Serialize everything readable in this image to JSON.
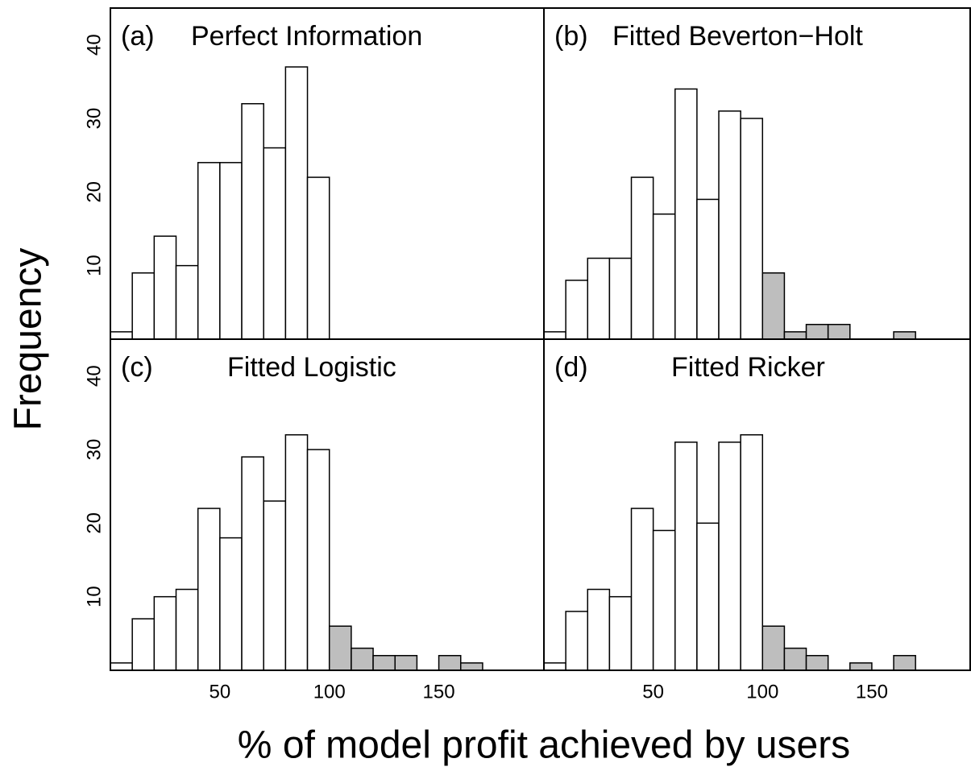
{
  "chart_data": [
    {
      "type": "histogram",
      "label": "(a)",
      "title": "Perfect Information",
      "bins": [
        0,
        10,
        20,
        30,
        40,
        50,
        60,
        70,
        80,
        90,
        100
      ],
      "counts": [
        1,
        9,
        14,
        10,
        24,
        24,
        32,
        26,
        37,
        22
      ],
      "colors": [
        "#ffffff",
        "#ffffff",
        "#ffffff",
        "#ffffff",
        "#ffffff",
        "#ffffff",
        "#ffffff",
        "#ffffff",
        "#ffffff",
        "#ffffff"
      ],
      "xlim": [
        0,
        198
      ],
      "ylim": [
        0,
        45
      ],
      "yticks": [
        10,
        20,
        30,
        40
      ]
    },
    {
      "type": "histogram",
      "label": "(b)",
      "title": "Fitted Beverton−Holt",
      "bins": [
        0,
        10,
        20,
        30,
        40,
        50,
        60,
        70,
        80,
        90,
        100,
        110,
        120,
        130,
        140,
        150,
        160,
        170
      ],
      "counts": [
        1,
        8,
        11,
        11,
        22,
        17,
        34,
        19,
        31,
        30,
        9,
        1,
        2,
        2,
        0,
        0,
        1
      ],
      "colors": [
        "#ffffff",
        "#ffffff",
        "#ffffff",
        "#ffffff",
        "#ffffff",
        "#ffffff",
        "#ffffff",
        "#ffffff",
        "#ffffff",
        "#ffffff",
        "#bebebe",
        "#bebebe",
        "#bebebe",
        "#bebebe",
        "#bebebe",
        "#bebebe",
        "#bebebe"
      ],
      "xlim": [
        0,
        195
      ],
      "ylim": [
        0,
        45
      ]
    },
    {
      "type": "histogram",
      "label": "(c)",
      "title": "Fitted Logistic",
      "bins": [
        0,
        10,
        20,
        30,
        40,
        50,
        60,
        70,
        80,
        90,
        100,
        110,
        120,
        130,
        140,
        150,
        160,
        170
      ],
      "counts": [
        1,
        7,
        10,
        11,
        22,
        18,
        29,
        23,
        32,
        30,
        6,
        3,
        2,
        2,
        0,
        2,
        1
      ],
      "colors": [
        "#ffffff",
        "#ffffff",
        "#ffffff",
        "#ffffff",
        "#ffffff",
        "#ffffff",
        "#ffffff",
        "#ffffff",
        "#ffffff",
        "#ffffff",
        "#bebebe",
        "#bebebe",
        "#bebebe",
        "#bebebe",
        "#bebebe",
        "#bebebe",
        "#bebebe"
      ],
      "xlim": [
        0,
        198
      ],
      "ylim": [
        0,
        45
      ],
      "yticks": [
        10,
        20,
        30,
        40
      ],
      "xticks": [
        50,
        100,
        150
      ]
    },
    {
      "type": "histogram",
      "label": "(d)",
      "title": "Fitted Ricker",
      "bins": [
        0,
        10,
        20,
        30,
        40,
        50,
        60,
        70,
        80,
        90,
        100,
        110,
        120,
        130,
        140,
        150,
        160,
        170
      ],
      "counts": [
        1,
        8,
        11,
        10,
        22,
        19,
        31,
        20,
        31,
        32,
        6,
        3,
        2,
        0,
        1,
        0,
        2
      ],
      "colors": [
        "#ffffff",
        "#ffffff",
        "#ffffff",
        "#ffffff",
        "#ffffff",
        "#ffffff",
        "#ffffff",
        "#ffffff",
        "#ffffff",
        "#ffffff",
        "#bebebe",
        "#bebebe",
        "#bebebe",
        "#bebebe",
        "#bebebe",
        "#bebebe",
        "#bebebe"
      ],
      "xlim": [
        0,
        195
      ],
      "ylim": [
        0,
        45
      ],
      "xticks": [
        50,
        100,
        150
      ]
    }
  ],
  "xlabel": "% of model profit achieved by users",
  "ylabel": "Frequency"
}
